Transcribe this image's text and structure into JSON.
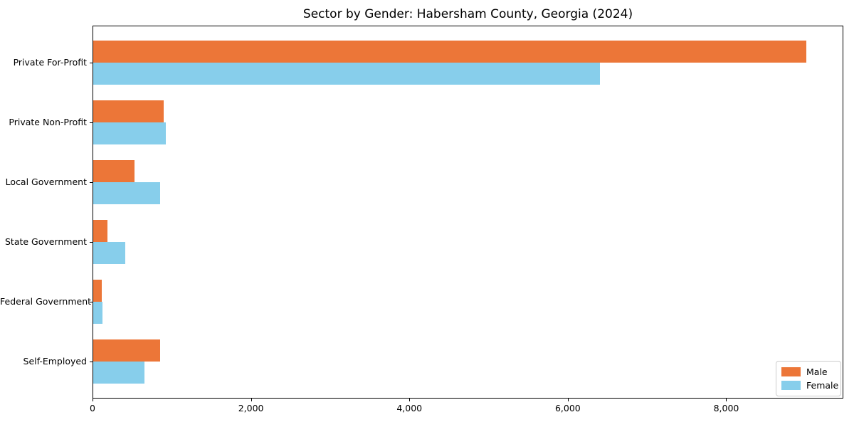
{
  "chart_data": {
    "type": "bar",
    "orientation": "horizontal",
    "title": "Sector by Gender: Habersham County, Georgia (2024)",
    "categories": [
      "Private For-Profit",
      "Private Non-Profit",
      "Local Government",
      "State Government",
      "Federal Government",
      "Self-Employed"
    ],
    "series": [
      {
        "name": "Male",
        "color": "#ec7638",
        "values": [
          9000,
          890,
          520,
          180,
          105,
          840
        ]
      },
      {
        "name": "Female",
        "color": "#87ceeb",
        "values": [
          6400,
          920,
          840,
          400,
          115,
          650
        ]
      }
    ],
    "xlabel": "",
    "ylabel": "",
    "xlim": [
      0,
      9460
    ],
    "x_ticks": [
      {
        "value": 0,
        "label": "0"
      },
      {
        "value": 2000,
        "label": "2,000"
      },
      {
        "value": 4000,
        "label": "4,000"
      },
      {
        "value": 6000,
        "label": "6,000"
      },
      {
        "value": 8000,
        "label": "8,000"
      }
    ],
    "grid": false,
    "legend": {
      "position": "lower right",
      "entries": [
        "Male",
        "Female"
      ]
    },
    "colors": {
      "background": "#ffffff",
      "spine": "#000000",
      "text": "#000000",
      "legend_border": "#cccccc"
    }
  }
}
